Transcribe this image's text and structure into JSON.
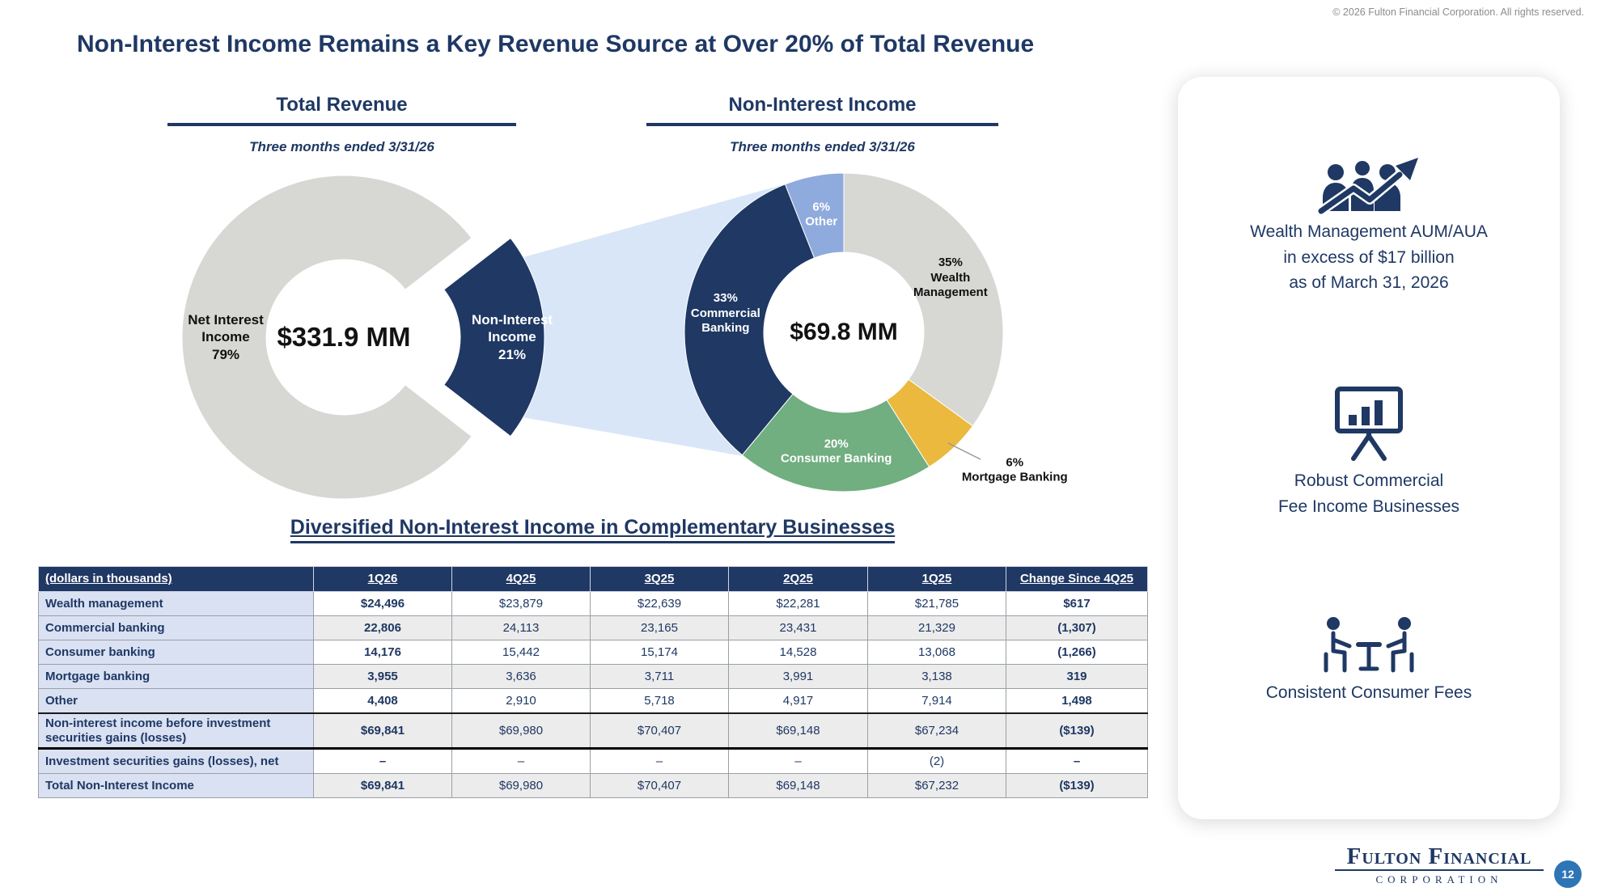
{
  "meta": {
    "copyright": "© 2026 Fulton Financial Corporation. All rights reserved.",
    "accent_navy": "#1f3864",
    "badge_blue": "#2e75b6"
  },
  "title": "Non-Interest Income Remains a Key Revenue Source at Over 20% of Total Revenue",
  "chart_data": [
    {
      "type": "pie",
      "title": "Total Revenue",
      "subtitle": "Three months ended 3/31/26",
      "center_label": "$331.9 MM",
      "legend_position": "inside",
      "slices": [
        {
          "name": "Non-Interest Income",
          "pct": 21,
          "color": "#1f3864",
          "text_color": "#ffffff",
          "explode_dx": 48,
          "label_r": 160,
          "label_wrap": 130
        },
        {
          "name": "Net Interest Income",
          "pct": 79,
          "color": "#d7d7d3",
          "text_color": "#111111",
          "label_r": 146,
          "label_wrap": 120
        }
      ]
    },
    {
      "type": "pie",
      "title": "Non-Interest Income",
      "subtitle": "Three months ended 3/31/26",
      "center_label": "$69.8 MM",
      "legend_position": "inside",
      "slices": [
        {
          "name": "Wealth Management",
          "pct": 35,
          "color": "#d7d7d3",
          "text_color": "#111111",
          "label_wrap": 105
        },
        {
          "name": "Mortgage Banking",
          "pct": 6,
          "color": "#eab93e",
          "text_color": "#111111",
          "label_r": 256,
          "label_dx": 36,
          "label_dy": -16,
          "label_wrap": 150
        },
        {
          "name": "Consumer Banking",
          "pct": 20,
          "color": "#71ae80",
          "text_color": "#ffffff",
          "label_wrap": 160
        },
        {
          "name": "Commercial Banking",
          "pct": 33,
          "color": "#1f3864",
          "text_color": "#ffffff",
          "label_wrap": 105
        },
        {
          "name": "Other",
          "pct": 6,
          "color": "#8faadc",
          "text_color": "#ffffff",
          "label_wrap": 80
        }
      ]
    }
  ],
  "table": {
    "section_title": "Diversified Non-Interest Income in Complementary Businesses",
    "columns": [
      "(dollars in thousands)",
      "1Q26",
      "4Q25",
      "3Q25",
      "2Q25",
      "1Q25",
      "Change Since 4Q25"
    ],
    "rows": [
      {
        "label": "Wealth management",
        "values": [
          "$24,496",
          "$23,879",
          "$22,639",
          "$22,281",
          "$21,785",
          "$617"
        ]
      },
      {
        "label": "Commercial banking",
        "values": [
          "22,806",
          "24,113",
          "23,165",
          "23,431",
          "21,329",
          "(1,307)"
        ]
      },
      {
        "label": "Consumer banking",
        "values": [
          "14,176",
          "15,442",
          "15,174",
          "14,528",
          "13,068",
          "(1,266)"
        ]
      },
      {
        "label": "Mortgage banking",
        "values": [
          "3,955",
          "3,636",
          "3,711",
          "3,991",
          "3,138",
          "319"
        ]
      },
      {
        "label": "Other",
        "values": [
          "4,408",
          "2,910",
          "5,718",
          "4,917",
          "7,914",
          "1,498"
        ]
      },
      {
        "label": "Non-interest income before investment securities gains (losses)",
        "values": [
          "$69,841",
          "$69,980",
          "$70,407",
          "$69,148",
          "$67,234",
          "($139)"
        ]
      },
      {
        "label": "Investment securities gains (losses), net",
        "values": [
          "–",
          "–",
          "–",
          "–",
          "(2)",
          "–"
        ]
      },
      {
        "label": "Total Non-Interest Income",
        "values": [
          "$69,841",
          "$69,980",
          "$70,407",
          "$69,148",
          "$67,232",
          "($139)"
        ]
      }
    ]
  },
  "sidebar": {
    "items": [
      {
        "icon": "wealth-growth-icon",
        "lines": [
          "Wealth Management AUM/AUA",
          "in excess of $17 billion",
          "as of March 31, 2026"
        ]
      },
      {
        "icon": "presentation-chart-icon",
        "lines": [
          "Robust Commercial",
          "Fee Income Businesses"
        ]
      },
      {
        "icon": "consumer-meeting-icon",
        "lines": [
          "Consistent Consumer Fees"
        ]
      }
    ]
  },
  "footer": {
    "logo_line1": "Fulton Financial",
    "logo_line2": "CORPORATION",
    "page": "12"
  }
}
